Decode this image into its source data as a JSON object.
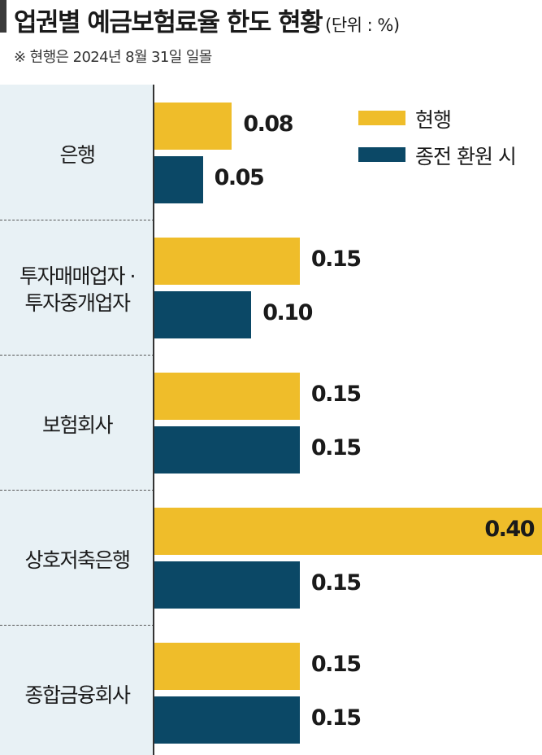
{
  "header": {
    "title": "업권별 예금보험료율 한도 현황",
    "unit": "(단위 : %)",
    "note": "※ 현행은 2024년 8월 31일 일몰"
  },
  "chart_data": {
    "type": "bar",
    "orientation": "horizontal",
    "categories": [
      "은행",
      "투자매매업자 · 투자중개업자",
      "보험회사",
      "상호저축은행",
      "종합금융회사"
    ],
    "category_lines": [
      [
        "은행"
      ],
      [
        "투자매매업자 ·",
        "투자중개업자"
      ],
      [
        "보험회사"
      ],
      [
        "상호저축은행"
      ],
      [
        "종합금융회사"
      ]
    ],
    "series": [
      {
        "name": "현행",
        "values": [
          0.08,
          0.15,
          0.15,
          0.4,
          0.15
        ],
        "labels": [
          "0.08",
          "0.15",
          "0.15",
          "0.40",
          "0.15"
        ],
        "color": "#efbd2a"
      },
      {
        "name": "종전 환원 시",
        "values": [
          0.05,
          0.1,
          0.15,
          0.15,
          0.15
        ],
        "labels": [
          "0.05",
          "0.10",
          "0.15",
          "0.15",
          "0.15"
        ],
        "color": "#0b4866"
      }
    ],
    "xlim": [
      0,
      0.4
    ],
    "unit": "%",
    "grid": false,
    "legend": "top-right",
    "panel_color": "#e8f1f5"
  }
}
